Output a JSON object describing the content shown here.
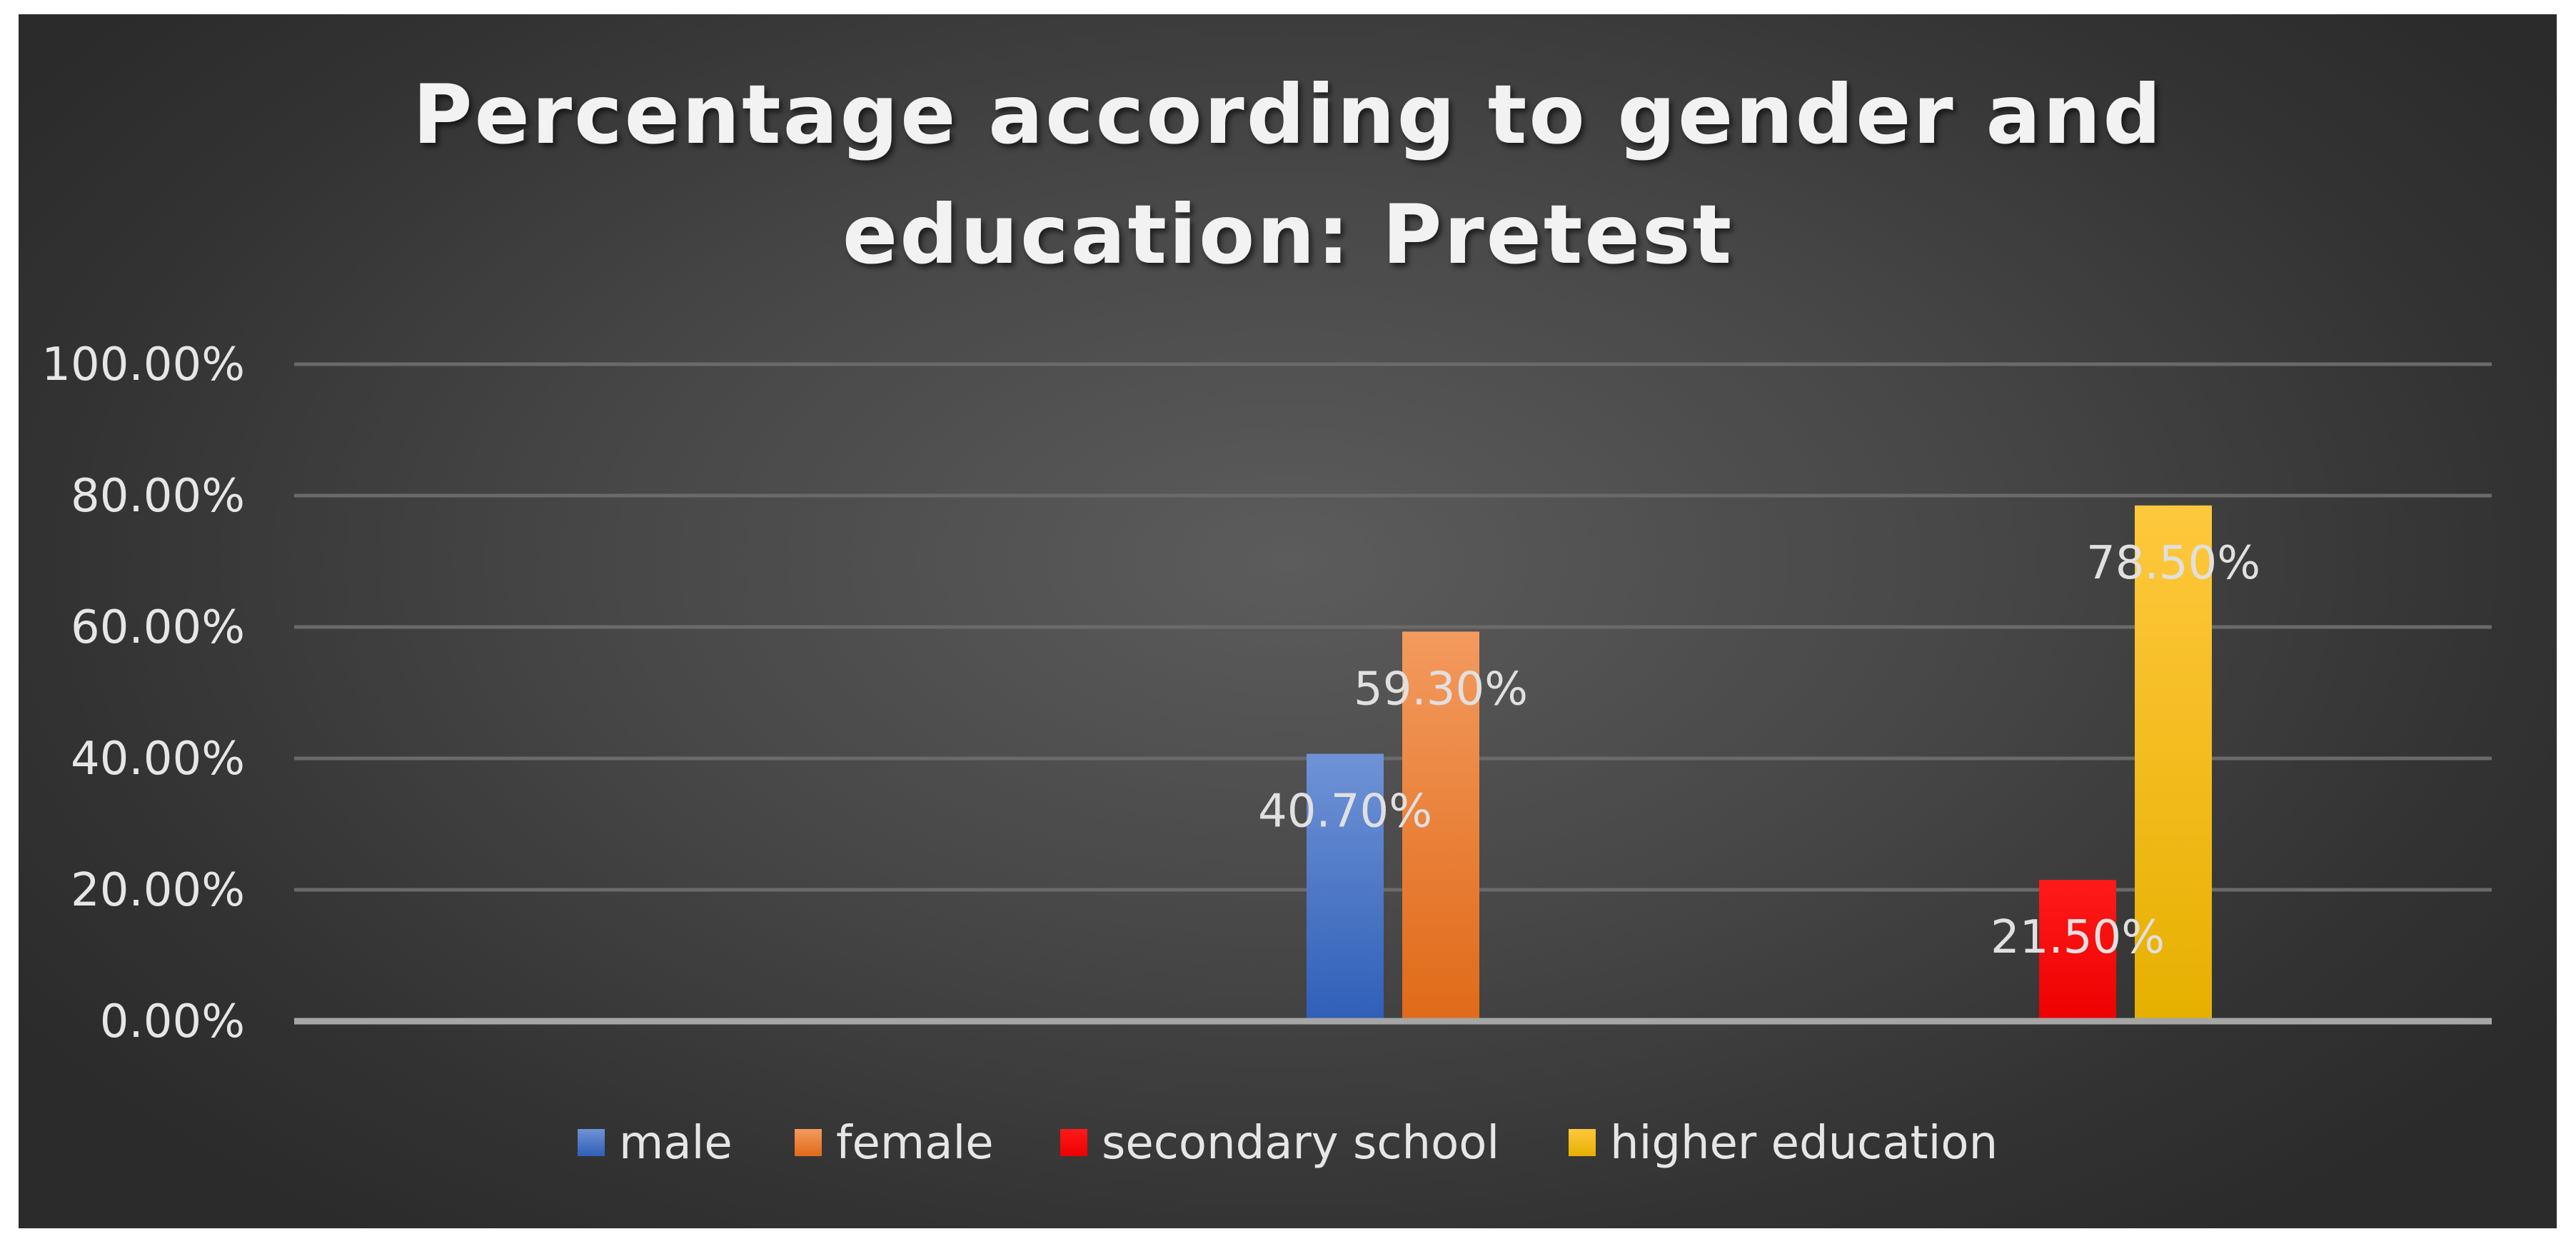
{
  "chart_data": {
    "type": "bar",
    "title": "Percentage according to gender and education: Pretest",
    "title_lines": [
      "Percentage according to gender and",
      "education: Pretest"
    ],
    "categories": [
      "",
      "",
      ""
    ],
    "series": [
      {
        "name": "male",
        "color": "#4472c4",
        "values": [
          null,
          40.7,
          null
        ],
        "labels": [
          "",
          "40.70%",
          ""
        ]
      },
      {
        "name": "female",
        "color": "#ed7d31",
        "values": [
          null,
          59.3,
          null
        ],
        "labels": [
          "",
          "59.30%",
          ""
        ]
      },
      {
        "name": "secondary school",
        "color": "#ff0000",
        "values": [
          null,
          null,
          21.5
        ],
        "labels": [
          "",
          "",
          "21.50%"
        ]
      },
      {
        "name": "higher education",
        "color": "#ffc000",
        "values": [
          null,
          null,
          78.5
        ],
        "labels": [
          "",
          "",
          "78.50%"
        ]
      }
    ],
    "ylim": [
      0,
      100
    ],
    "yticks": [
      0,
      20,
      40,
      60,
      80,
      100
    ],
    "ytick_labels": [
      "0.00%",
      "20.00%",
      "40.00%",
      "60.00%",
      "80.00%",
      "100.00%"
    ],
    "xlabel": "",
    "ylabel": "",
    "grid": true,
    "legend_position": "bottom"
  }
}
